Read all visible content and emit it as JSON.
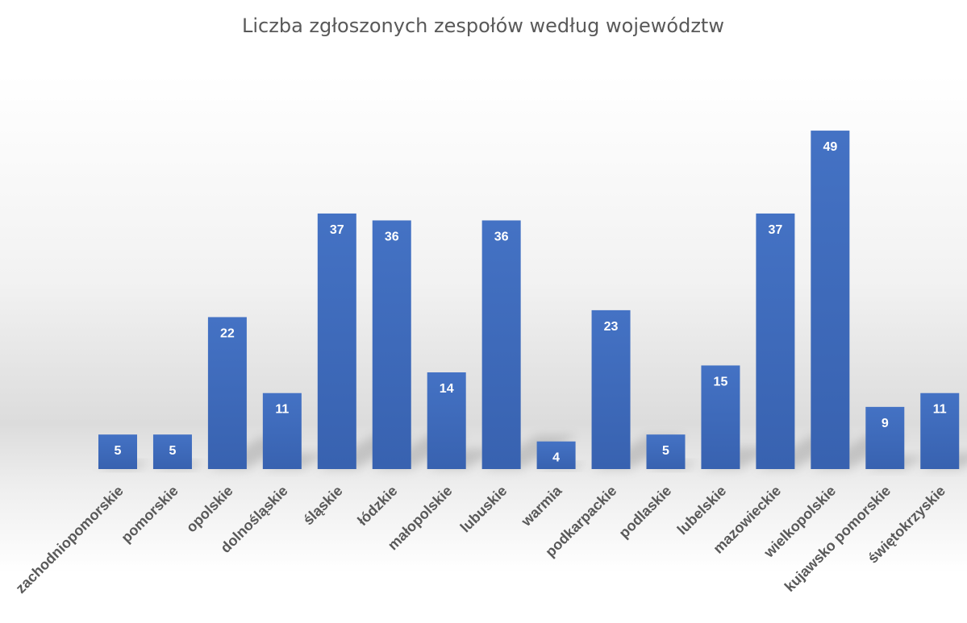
{
  "chart_data": {
    "type": "bar",
    "title": "Liczba zgłoszonych zespołów według województw",
    "xlabel": "",
    "ylabel": "",
    "categories": [
      "zachodniopomorskie",
      "pomorskie",
      "opolskie",
      "dolnośląskie",
      "śląskie",
      "łódzkie",
      "małopolskie",
      "lubuskie",
      "warmia",
      "podkarpackie",
      "podlaskie",
      "lubelskie",
      "mazowieckie",
      "wielkopolskie",
      "kujawsko pomorskie",
      "świętokrzyskie"
    ],
    "values": [
      5,
      5,
      22,
      11,
      37,
      36,
      14,
      36,
      4,
      23,
      5,
      15,
      37,
      49,
      9,
      11
    ],
    "ylim": [
      0,
      49
    ],
    "grid": false,
    "legend": "none",
    "bar_color": "#4472c4",
    "bar_color_dark": "#3862b0",
    "data_label_color": "#ffffff",
    "text_color": "#595959"
  }
}
